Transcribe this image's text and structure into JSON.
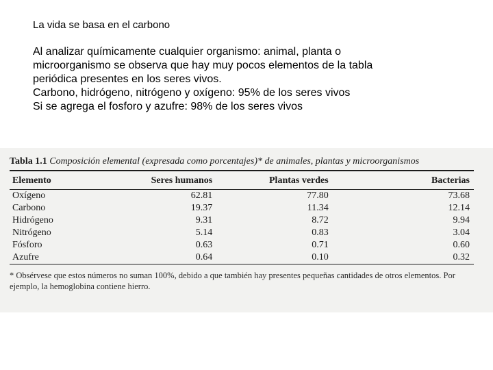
{
  "heading": "La vida se basa en el carbono",
  "body": {
    "l1": "Al analizar químicamente cualquier organismo: animal, planta o",
    "l2": "microorganismo se observa que hay muy pocos elementos de la tabla",
    "l3": "periódica presentes en los seres vivos.",
    "l4": "Carbono, hidrógeno, nitrógeno y oxígeno: 95% de los seres vivos",
    "l5": "Si se agrega el fosforo y azufre: 98% de los seres vivos"
  },
  "scan": {
    "background_color": "#f2f2f0",
    "rule_color": "#1a1a1a",
    "caption_label": "Tabla 1.1",
    "caption_rest": "Composición elemental (expresada como porcentajes)* de animales, plantas y microorganismos",
    "table": {
      "type": "table",
      "columns": [
        "Elemento",
        "Seres humanos",
        "Plantas verdes",
        "Bacterias"
      ],
      "col_align": [
        "left",
        "right",
        "right",
        "right"
      ],
      "rows": [
        [
          "Oxígeno",
          "62.81",
          "77.80",
          "73.68"
        ],
        [
          "Carbono",
          "19.37",
          "11.34",
          "12.14"
        ],
        [
          "Hidrógeno",
          "9.31",
          "8.72",
          "9.94"
        ],
        [
          "Nitrógeno",
          "5.14",
          "0.83",
          "3.04"
        ],
        [
          "Fósforo",
          "0.63",
          "0.71",
          "0.60"
        ],
        [
          "Azufre",
          "0.64",
          "0.10",
          "0.32"
        ]
      ],
      "header_fontweight": "700",
      "body_fontsize_pt": 10.5,
      "font_family": "Times New Roman"
    },
    "footnote": "* Obsérvese que estos números no suman 100%, debido a que también hay presentes pequeñas cantidades de otros elementos. Por ejemplo, la hemoglobina contiene hierro."
  }
}
